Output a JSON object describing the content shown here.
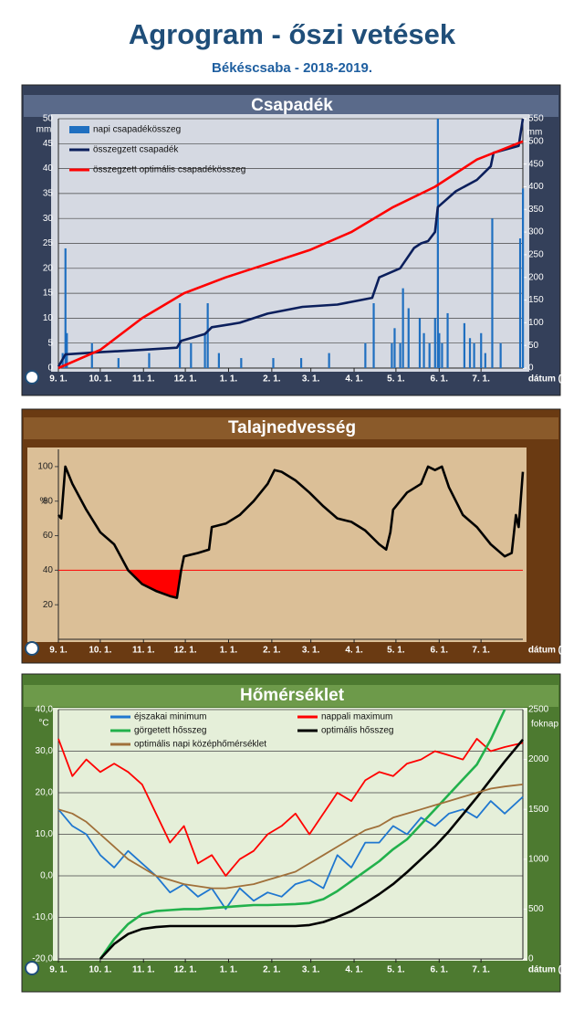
{
  "header": {
    "title": "Agrogram - őszi vetések",
    "subtitle": "Békéscsaba - 2018-2019."
  },
  "chart_data": [
    {
      "type": "combo",
      "title": "Csapadék",
      "y_unit": "mm",
      "y2_unit": "mm",
      "x_label": "dátum (hó.nap)",
      "grid": true,
      "legend": "upper left",
      "legend_columns": 1,
      "xlim": [
        0,
        333
      ],
      "xticks": [
        {
          "value": 0,
          "label": "9. 1."
        },
        {
          "value": 30,
          "label": "10. 1."
        },
        {
          "value": 61,
          "label": "11. 1."
        },
        {
          "value": 91,
          "label": "12. 1."
        },
        {
          "value": 122,
          "label": "1. 1."
        },
        {
          "value": 153,
          "label": "2. 1."
        },
        {
          "value": 181,
          "label": "3. 1."
        },
        {
          "value": 212,
          "label": "4. 1."
        },
        {
          "value": 242,
          "label": "5. 1."
        },
        {
          "value": 273,
          "label": "6. 1."
        },
        {
          "value": 303,
          "label": "7. 1."
        }
      ],
      "ylim": [
        0,
        50
      ],
      "yticks": [
        0,
        5,
        10,
        15,
        20,
        25,
        30,
        35,
        40,
        45,
        50
      ],
      "y2lim": [
        0,
        550
      ],
      "y2ticks": [
        0,
        50,
        100,
        150,
        200,
        250,
        300,
        350,
        400,
        450,
        500,
        550
      ],
      "series": [
        {
          "name": "napi csapadékösszeg",
          "type": "bar",
          "color": "#1f6fc0",
          "x": [
            3,
            5,
            6,
            24,
            43,
            65,
            87,
            95,
            105,
            107,
            115,
            131,
            154,
            174,
            194,
            220,
            226,
            239,
            241,
            245,
            247,
            251,
            259,
            262,
            266,
            270,
            272,
            273,
            275,
            279,
            291,
            295,
            298,
            303,
            306,
            311,
            317,
            331,
            333
          ],
          "values": [
            3,
            24,
            7,
            5,
            2,
            3,
            13,
            5,
            7,
            13,
            3,
            2,
            2,
            2,
            3,
            5,
            13,
            5,
            8,
            5,
            16,
            12,
            10,
            7,
            5,
            10,
            50,
            7,
            5,
            11,
            9,
            6,
            5,
            7,
            3,
            30,
            5,
            26,
            36
          ]
        },
        {
          "name": "összegzett csapadék",
          "type": "line",
          "axis": "y2",
          "color": "#0b1f5c",
          "x": [
            0,
            5,
            30,
            60,
            85,
            88,
            105,
            110,
            130,
            150,
            175,
            200,
            225,
            230,
            245,
            255,
            260,
            265,
            270,
            272,
            285,
            300,
            305,
            310,
            312,
            330,
            333
          ],
          "values": [
            3,
            30,
            35,
            40,
            45,
            60,
            75,
            90,
            100,
            120,
            135,
            140,
            155,
            200,
            220,
            265,
            275,
            280,
            300,
            355,
            390,
            415,
            430,
            445,
            475,
            490,
            550
          ]
        },
        {
          "name": "összegzett optimális csapadékösszeg",
          "type": "line",
          "axis": "y2",
          "color": "#ff0000",
          "x": [
            0,
            30,
            60,
            90,
            120,
            150,
            180,
            210,
            240,
            270,
            300,
            333
          ],
          "values": [
            0,
            40,
            110,
            165,
            200,
            230,
            260,
            300,
            355,
            400,
            460,
            500
          ]
        }
      ]
    },
    {
      "type": "line",
      "title": "Talajnedvesség",
      "y_unit": "%",
      "x_label": "dátum (hó.nap)",
      "grid": false,
      "threshold": 40,
      "threshold_color": "#ff0000",
      "xlim": [
        0,
        333
      ],
      "xticks": [
        {
          "value": 0,
          "label": "9. 1."
        },
        {
          "value": 30,
          "label": "10. 1."
        },
        {
          "value": 61,
          "label": "11. 1."
        },
        {
          "value": 91,
          "label": "12. 1."
        },
        {
          "value": 122,
          "label": "1. 1."
        },
        {
          "value": 153,
          "label": "2. 1."
        },
        {
          "value": 181,
          "label": "3. 1."
        },
        {
          "value": 212,
          "label": "4. 1."
        },
        {
          "value": 242,
          "label": "5. 1."
        },
        {
          "value": 273,
          "label": "6. 1."
        },
        {
          "value": 303,
          "label": "7. 1."
        }
      ],
      "ylim": [
        0,
        110
      ],
      "yticks": [
        20,
        40,
        60,
        80,
        100
      ],
      "series": [
        {
          "type": "line",
          "color": "#000000",
          "x": [
            0,
            2,
            5,
            10,
            20,
            30,
            40,
            50,
            60,
            70,
            80,
            85,
            88,
            90,
            100,
            108,
            110,
            120,
            130,
            140,
            150,
            155,
            160,
            170,
            180,
            190,
            200,
            210,
            220,
            230,
            235,
            238,
            240,
            250,
            260,
            265,
            270,
            275,
            280,
            290,
            300,
            310,
            320,
            325,
            328,
            330,
            333
          ],
          "values": [
            72,
            70,
            100,
            90,
            75,
            62,
            55,
            40,
            32,
            28,
            25,
            24,
            40,
            48,
            50,
            52,
            65,
            67,
            72,
            80,
            90,
            98,
            97,
            92,
            85,
            77,
            70,
            68,
            63,
            55,
            52,
            62,
            75,
            85,
            90,
            100,
            98,
            100,
            88,
            72,
            65,
            55,
            48,
            50,
            72,
            65,
            97
          ]
        }
      ]
    },
    {
      "type": "line",
      "title": "Hőmérséklet",
      "y_unit": "°C",
      "y2_unit": "foknap",
      "x_label": "dátum (hó.nap)",
      "grid": true,
      "legend": "upper left",
      "legend_columns": 2,
      "xlim": [
        0,
        333
      ],
      "xticks": [
        {
          "value": 0,
          "label": "9. 1."
        },
        {
          "value": 30,
          "label": "10. 1."
        },
        {
          "value": 61,
          "label": "11. 1."
        },
        {
          "value": 91,
          "label": "12. 1."
        },
        {
          "value": 122,
          "label": "1. 1."
        },
        {
          "value": 153,
          "label": "2. 1."
        },
        {
          "value": 181,
          "label": "3. 1."
        },
        {
          "value": 212,
          "label": "4. 1."
        },
        {
          "value": 242,
          "label": "5. 1."
        },
        {
          "value": 273,
          "label": "6. 1."
        },
        {
          "value": 303,
          "label": "7. 1."
        }
      ],
      "ylim": [
        -20,
        40
      ],
      "yticks": [
        {
          "value": -20,
          "label": "-20,0"
        },
        {
          "value": -10,
          "label": "-10,0"
        },
        {
          "value": 0,
          "label": "0,0"
        },
        {
          "value": 10,
          "label": "10,0"
        },
        {
          "value": 20,
          "label": "20,0"
        },
        {
          "value": 30,
          "label": "30,0"
        },
        {
          "value": 40,
          "label": "40,0"
        }
      ],
      "y2lim": [
        0,
        2500
      ],
      "y2ticks": [
        0,
        500,
        1000,
        1500,
        2000,
        2500
      ],
      "series": [
        {
          "name": "éjszakai minimum",
          "type": "line",
          "color": "#1f77d0",
          "x": [
            0,
            10,
            20,
            30,
            40,
            50,
            60,
            70,
            80,
            90,
            100,
            110,
            120,
            130,
            140,
            150,
            160,
            170,
            180,
            190,
            200,
            210,
            220,
            230,
            240,
            250,
            260,
            270,
            280,
            290,
            300,
            310,
            320,
            333
          ],
          "values": [
            16,
            12,
            10,
            5,
            2,
            6,
            3,
            0,
            -4,
            -2,
            -5,
            -3,
            -8,
            -3,
            -6,
            -4,
            -5,
            -2,
            -1,
            -3,
            5,
            2,
            8,
            8,
            12,
            10,
            14,
            12,
            15,
            16,
            14,
            18,
            15,
            19
          ]
        },
        {
          "name": "nappali maximum",
          "type": "line",
          "color": "#ff0000",
          "x": [
            0,
            10,
            20,
            30,
            40,
            50,
            60,
            70,
            80,
            90,
            100,
            110,
            120,
            130,
            140,
            150,
            160,
            170,
            180,
            190,
            200,
            210,
            220,
            230,
            240,
            250,
            260,
            270,
            280,
            290,
            300,
            310,
            320,
            333
          ],
          "values": [
            33,
            24,
            28,
            25,
            27,
            25,
            22,
            15,
            8,
            12,
            3,
            5,
            0,
            4,
            6,
            10,
            12,
            15,
            10,
            15,
            20,
            18,
            23,
            25,
            24,
            27,
            28,
            30,
            29,
            28,
            33,
            30,
            31,
            32
          ]
        },
        {
          "name": "görgetett hősszeg",
          "type": "line",
          "axis": "y2",
          "color": "#22b14c",
          "x": [
            30,
            40,
            50,
            60,
            70,
            80,
            90,
            100,
            110,
            120,
            130,
            140,
            150,
            160,
            170,
            180,
            190,
            200,
            210,
            220,
            230,
            240,
            250,
            260,
            270,
            280,
            290,
            300,
            310,
            320
          ],
          "values": [
            0,
            200,
            350,
            450,
            480,
            490,
            500,
            500,
            510,
            520,
            530,
            540,
            540,
            545,
            550,
            560,
            600,
            680,
            780,
            880,
            980,
            1100,
            1200,
            1350,
            1500,
            1650,
            1800,
            1950,
            2200,
            2500
          ]
        },
        {
          "name": "optimális hősszeg",
          "type": "line",
          "axis": "y2",
          "color": "#000000",
          "x": [
            30,
            40,
            50,
            60,
            70,
            80,
            90,
            170,
            180,
            190,
            200,
            210,
            220,
            230,
            240,
            250,
            260,
            270,
            280,
            290,
            300,
            310,
            320,
            333
          ],
          "values": [
            0,
            150,
            250,
            300,
            320,
            330,
            330,
            330,
            340,
            370,
            420,
            480,
            560,
            650,
            750,
            870,
            1000,
            1130,
            1280,
            1450,
            1620,
            1800,
            1980,
            2200
          ]
        },
        {
          "name": "optimális napi középhőmérséklet",
          "type": "line",
          "color": "#a0703a",
          "x": [
            0,
            10,
            20,
            30,
            40,
            50,
            60,
            70,
            80,
            90,
            100,
            110,
            120,
            130,
            140,
            150,
            160,
            170,
            180,
            190,
            200,
            210,
            220,
            230,
            240,
            250,
            260,
            270,
            280,
            290,
            300,
            310,
            320,
            333
          ],
          "values": [
            16,
            15,
            13,
            10,
            7,
            4,
            2,
            0,
            -1,
            -2,
            -2.5,
            -3,
            -3,
            -2.5,
            -2,
            -1,
            0,
            1,
            3,
            5,
            7,
            9,
            11,
            12,
            14,
            15,
            16,
            17,
            18,
            19,
            20,
            21,
            21.5,
            22
          ]
        }
      ]
    }
  ]
}
